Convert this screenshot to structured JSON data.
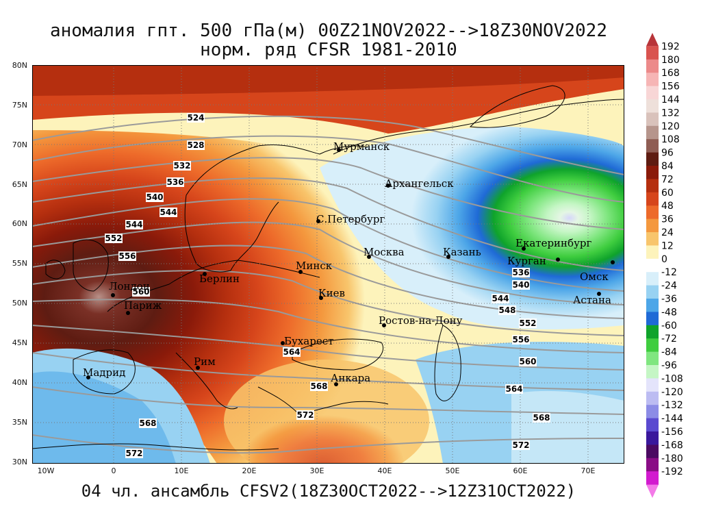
{
  "title": {
    "line1": "аномалия гпт. 500 гПа(м) 00Z21NOV2022-->18Z30NOV2022",
    "line2": "норм. ряд CFSR 1981-2010"
  },
  "subtitle": "04 чл. ансамбль CFSV2(18Z30OCT2022-->12Z31OCT2022)",
  "lat_labels": [
    "80N",
    "75N",
    "70N",
    "65N",
    "60N",
    "55N",
    "50N",
    "45N",
    "40N",
    "35N",
    "30N"
  ],
  "lon_labels": [
    "10W",
    "0",
    "10E",
    "20E",
    "30E",
    "40E",
    "50E",
    "60E",
    "70E"
  ],
  "cities": [
    {
      "name": "Мурманск"
    },
    {
      "name": "Архангельск"
    },
    {
      "name": "С.Петербург"
    },
    {
      "name": "Москва"
    },
    {
      "name": "Казань"
    },
    {
      "name": "Екатеринбург"
    },
    {
      "name": "Курган"
    },
    {
      "name": "Омск"
    },
    {
      "name": "Астана"
    },
    {
      "name": "Минск"
    },
    {
      "name": "Киев"
    },
    {
      "name": "Берлин"
    },
    {
      "name": "Лондон"
    },
    {
      "name": "Париж"
    },
    {
      "name": "Мадрид"
    },
    {
      "name": "Рим"
    },
    {
      "name": "Бухарест"
    },
    {
      "name": "Анкара"
    },
    {
      "name": "Ростов-на-Дону"
    }
  ],
  "contour_labels": [
    "524",
    "528",
    "532",
    "536",
    "540",
    "544",
    "548",
    "552",
    "556",
    "560",
    "564",
    "568",
    "572"
  ],
  "colorbar": {
    "levels": [
      "192",
      "180",
      "168",
      "156",
      "144",
      "132",
      "120",
      "108",
      "96",
      "84",
      "72",
      "60",
      "48",
      "36",
      "24",
      "12",
      "0",
      "-12",
      "-24",
      "-36",
      "-48",
      "-60",
      "-72",
      "-84",
      "-96",
      "-108",
      "-120",
      "-132",
      "-144",
      "-156",
      "-168",
      "-180",
      "-192"
    ],
    "colors": [
      "#b8353a",
      "#d9534f",
      "#ec8a8a",
      "#f6b5b5",
      "#f8d6d6",
      "#eee0da",
      "#d9c2bb",
      "#b6958c",
      "#8f5d54",
      "#5e1c12",
      "#8a1a0a",
      "#b52f0f",
      "#d6451b",
      "#ed6a2a",
      "#f4983e",
      "#f8c56c",
      "#fdf3bb",
      "#ffffff",
      "#d8effa",
      "#98d2f2",
      "#4da6e8",
      "#1f6ad6",
      "#0fa32b",
      "#3fcd3f",
      "#80e680",
      "#c5f6c5",
      "#e4e4fb",
      "#bcbcf2",
      "#8c8ce6",
      "#5a4ad0",
      "#3a189c",
      "#4b0a62",
      "#8a0d86",
      "#d21acf",
      "#f37ae8"
    ]
  }
}
